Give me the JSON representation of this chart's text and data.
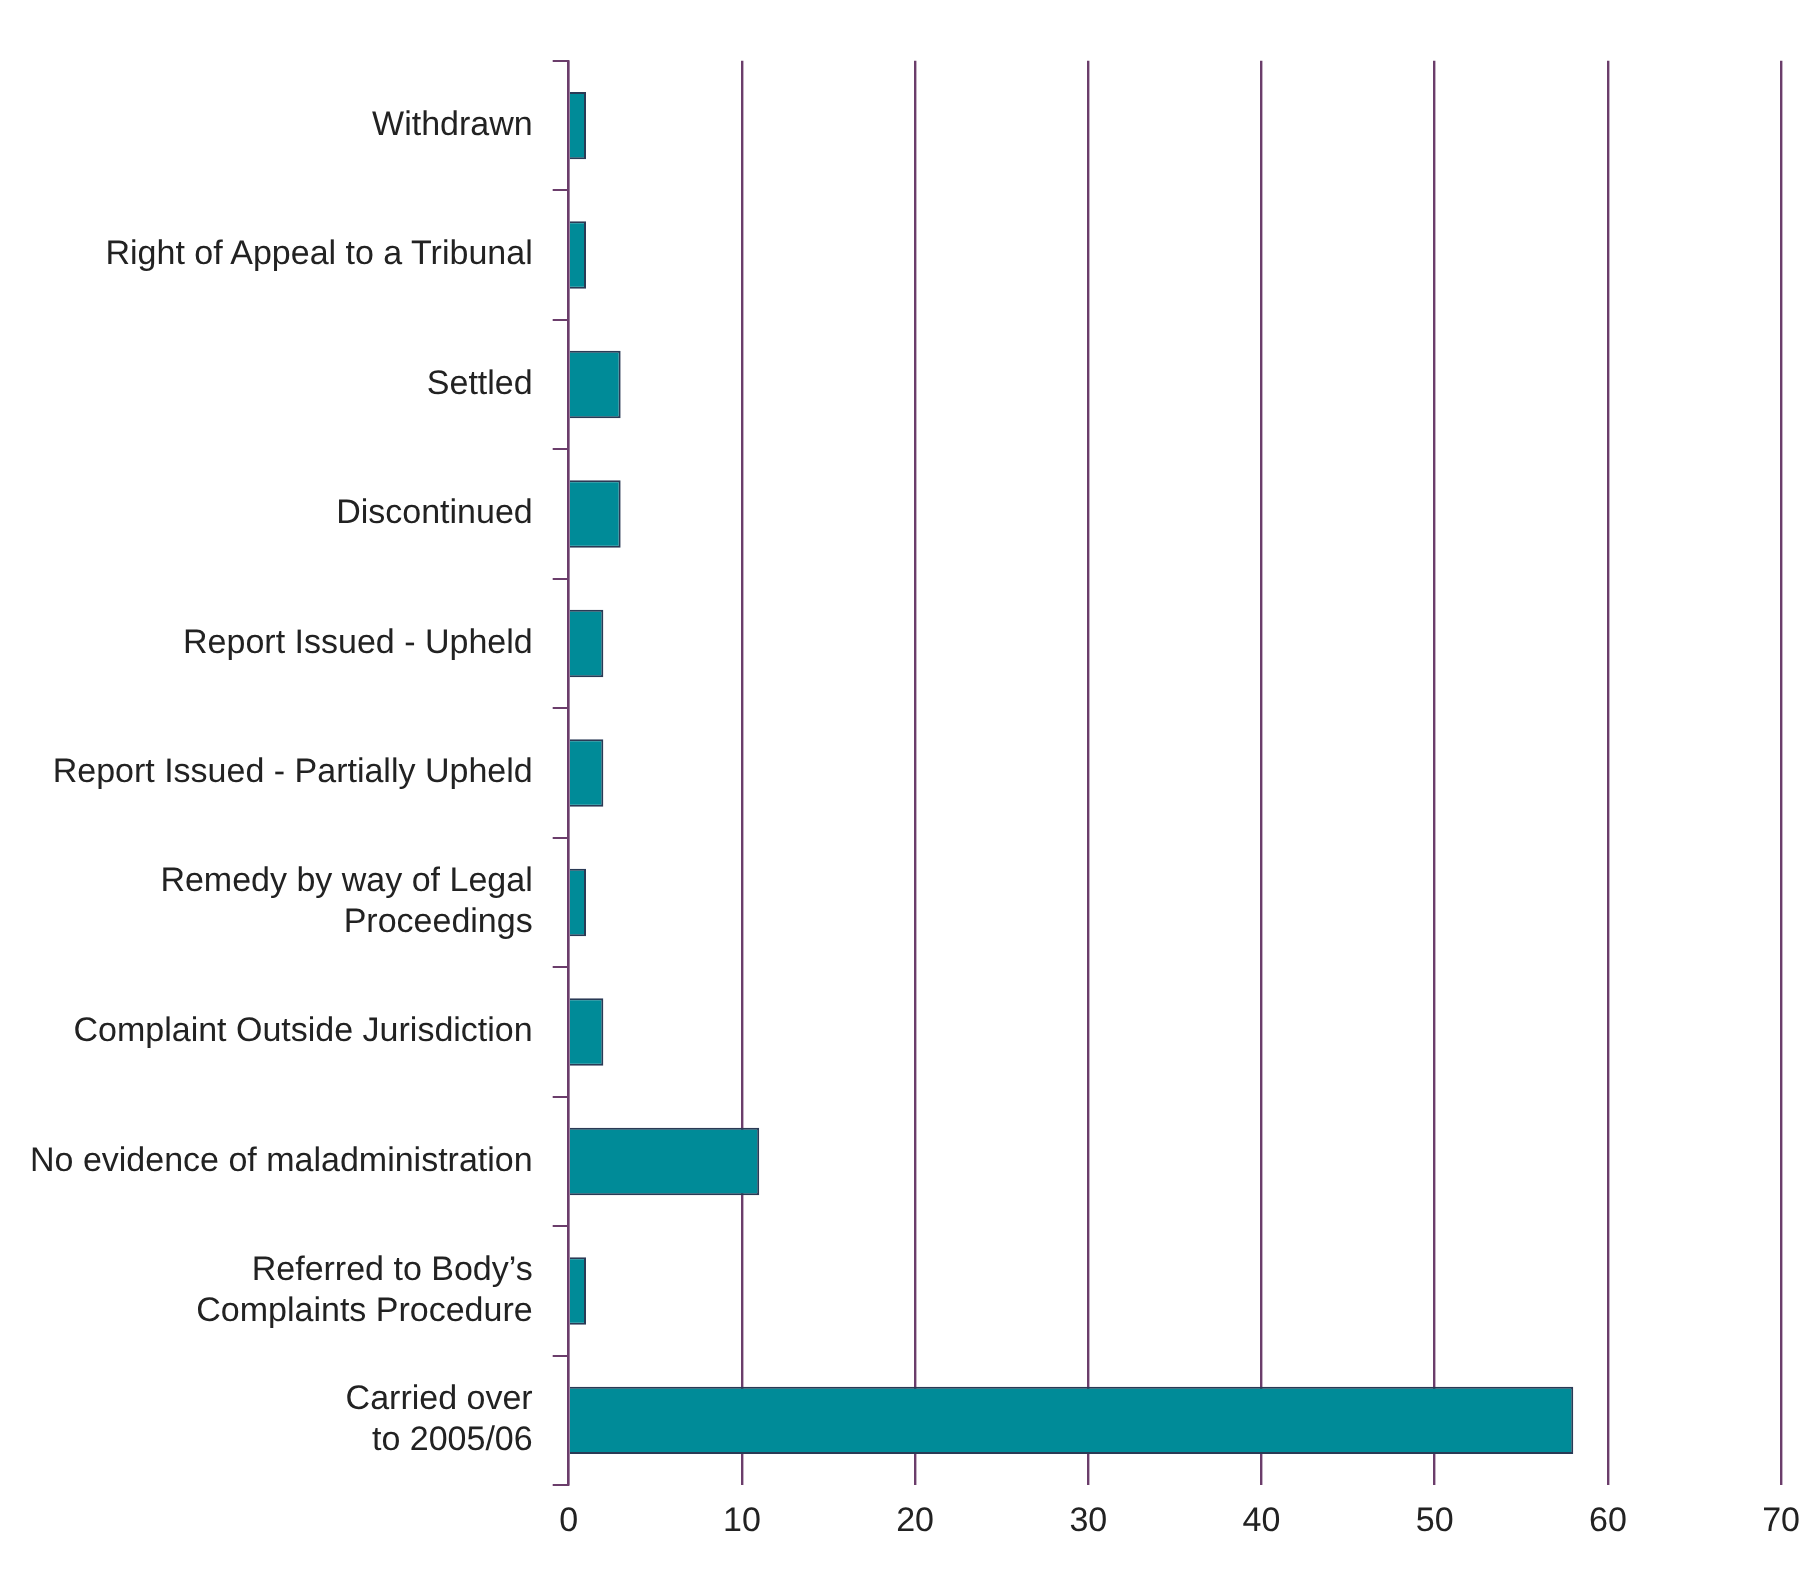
{
  "chart_data": {
    "type": "bar",
    "orientation": "horizontal",
    "categories": [
      "Withdrawn",
      "Right of Appeal to a Tribunal",
      "Settled",
      "Discontinued",
      "Report Issued - Upheld",
      "Report Issued - Partially Upheld",
      "Remedy by way of Legal\nProceedings",
      "Complaint Outside Jurisdiction",
      "No evidence of maladministration",
      "Referred to Body’s\nComplaints Procedure",
      "Carried over\nto 2005/06"
    ],
    "values": [
      1,
      1,
      3,
      3,
      2,
      2,
      1,
      2,
      11,
      1,
      58
    ],
    "color": "#008b98",
    "xlim": [
      0,
      70
    ],
    "xticks": [
      0,
      10,
      20,
      30,
      40,
      50,
      60,
      70
    ],
    "grid": "x",
    "legend": false
  }
}
